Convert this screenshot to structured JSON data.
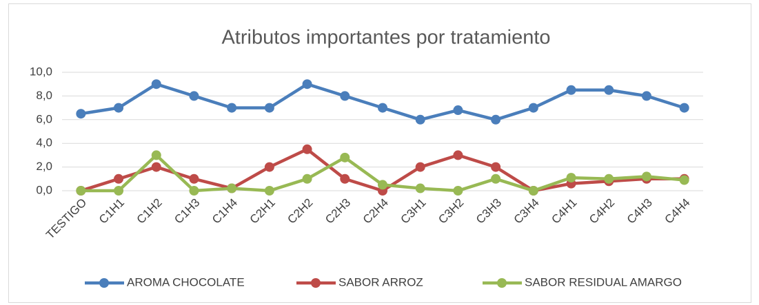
{
  "chart_data": {
    "type": "line",
    "title": "Atributos importantes por tratamiento",
    "categories": [
      "TESTIGO",
      "C1H1",
      "C1H2",
      "C1H3",
      "C1H4",
      "C2H1",
      "C2H2",
      "C2H3",
      "C2H4",
      "C3H1",
      "C3H2",
      "C3H3",
      "C3H4",
      "C4H1",
      "C4H2",
      "C4H3",
      "C4H4"
    ],
    "series": [
      {
        "name": "AROMA CHOCOLATE",
        "color": "#4a7ebb",
        "values": [
          6.5,
          7,
          9,
          8,
          7,
          7,
          9,
          8,
          7,
          6,
          6.8,
          6,
          7,
          8.5,
          8.5,
          8,
          7
        ]
      },
      {
        "name": "SABOR ARROZ",
        "color": "#be4b48",
        "values": [
          0,
          1,
          2,
          1,
          0.2,
          2,
          3.5,
          1,
          0,
          2,
          3,
          2,
          0,
          0.6,
          0.8,
          1,
          1
        ]
      },
      {
        "name": "SABOR RESIDUAL AMARGO",
        "color": "#98b954",
        "values": [
          0,
          0,
          3,
          0,
          0.2,
          0,
          1,
          2.8,
          0.5,
          0.2,
          0,
          1,
          0,
          1.1,
          1,
          1.2,
          0.9
        ]
      }
    ],
    "ylim": [
      0,
      10
    ],
    "yticks": [
      {
        "value": 0,
        "label": "0,0"
      },
      {
        "value": 2,
        "label": "2,0"
      },
      {
        "value": 4,
        "label": "4,0"
      },
      {
        "value": 6,
        "label": "6,0"
      },
      {
        "value": 8,
        "label": "8,0"
      },
      {
        "value": 10,
        "label": "10,0"
      }
    ],
    "grid": true,
    "legend": "bottom"
  }
}
